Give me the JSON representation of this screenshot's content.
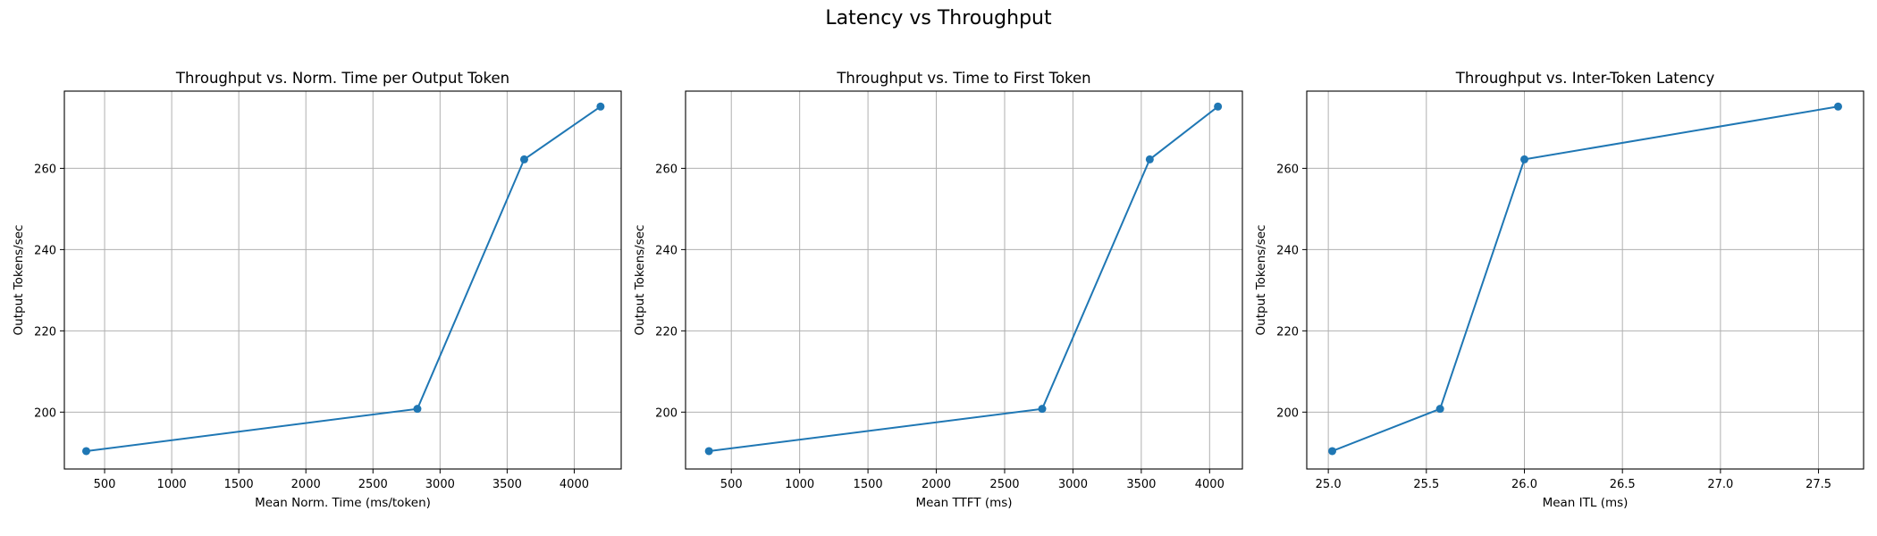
{
  "figure_title": "Latency vs Throughput",
  "chart_data": [
    {
      "type": "line",
      "title": "Throughput vs. Norm. Time per Output Token",
      "xlabel": "Mean Norm. Time (ms/token)",
      "ylabel": "Output Tokens/sec",
      "xlim": [
        200,
        4350
      ],
      "ylim": [
        186,
        279
      ],
      "xticks": [
        500,
        1000,
        1500,
        2000,
        2500,
        3000,
        3500,
        4000
      ],
      "yticks": [
        200,
        220,
        240,
        260
      ],
      "grid": true,
      "color": "#1f77b4",
      "x": [
        363,
        2831,
        3627,
        4196
      ],
      "y": [
        190.4,
        200.8,
        262.2,
        275.2
      ]
    },
    {
      "type": "line",
      "title": "Throughput vs. Time to First Token",
      "xlabel": "Mean TTFT (ms)",
      "ylabel": "Output Tokens/sec",
      "xlim": [
        165,
        4240
      ],
      "ylim": [
        186,
        279
      ],
      "xticks": [
        500,
        1000,
        1500,
        2000,
        2500,
        3000,
        3500,
        4000
      ],
      "yticks": [
        200,
        220,
        240,
        260
      ],
      "grid": true,
      "color": "#1f77b4",
      "x": [
        336,
        2775,
        3562,
        4061
      ],
      "y": [
        190.4,
        200.8,
        262.2,
        275.2
      ]
    },
    {
      "type": "line",
      "title": "Throughput vs. Inter-Token Latency",
      "xlabel": "Mean ITL (ms)",
      "ylabel": "Output Tokens/sec",
      "xlim": [
        24.89,
        27.73
      ],
      "ylim": [
        186,
        279
      ],
      "xticks": [
        25.0,
        25.5,
        26.0,
        26.5,
        27.0,
        27.5
      ],
      "yticks": [
        200,
        220,
        240,
        260
      ],
      "grid": true,
      "color": "#1f77b4",
      "x": [
        25.02,
        25.57,
        26.0,
        27.6
      ],
      "y": [
        190.4,
        200.8,
        262.2,
        275.2
      ]
    }
  ]
}
